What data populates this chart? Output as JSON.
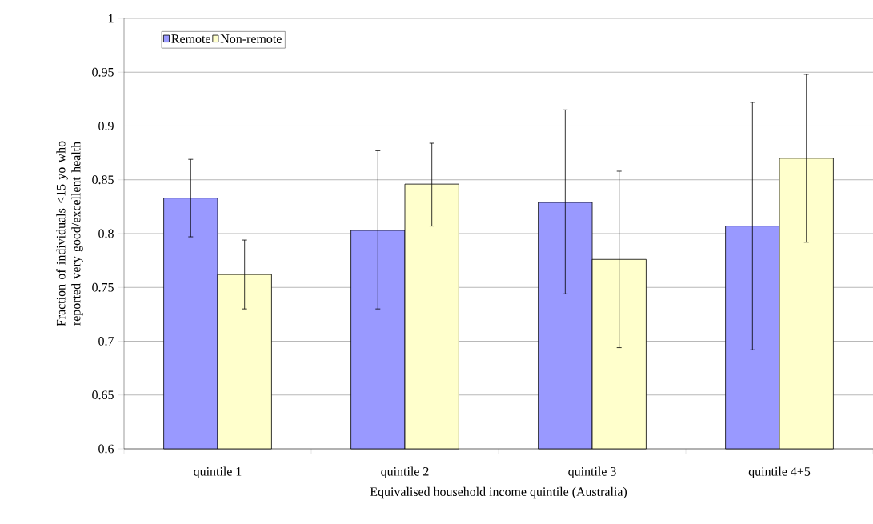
{
  "chart_data": {
    "type": "bar",
    "xlabel": "Equivalised household income quintile (Australia)",
    "ylabel": "Fraction of individuals <15 yo who reported very good/excellent health",
    "categories": [
      "quintile 1",
      "quintile 2",
      "quintile 3",
      "quintile 4+5"
    ],
    "series": [
      {
        "name": "Remote",
        "color": "#9999ff",
        "values": [
          0.833,
          0.803,
          0.829,
          0.807
        ],
        "errors": [
          [
            0.797,
            0.869
          ],
          [
            0.73,
            0.877
          ],
          [
            0.744,
            0.915
          ],
          [
            0.692,
            0.922
          ]
        ]
      },
      {
        "name": "Non-remote",
        "color": "#ffffcc",
        "values": [
          0.762,
          0.846,
          0.776,
          0.87
        ],
        "errors": [
          [
            0.73,
            0.794
          ],
          [
            0.807,
            0.884
          ],
          [
            0.694,
            0.858
          ],
          [
            0.792,
            0.948
          ]
        ]
      }
    ],
    "ylim": [
      0.6,
      1
    ],
    "yticks": [
      0.6,
      0.65,
      0.7,
      0.75,
      0.8,
      0.85,
      0.9,
      0.95,
      1
    ],
    "grid": "y",
    "legend": "top left"
  }
}
